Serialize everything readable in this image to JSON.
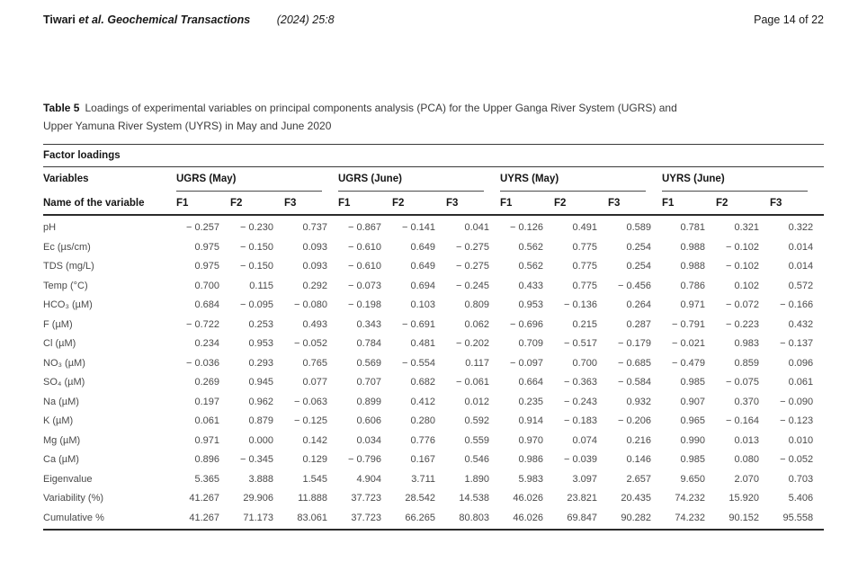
{
  "page_header": {
    "author": "Tiwari",
    "journal": "et al. Geochemical Transactions",
    "citation": "(2024) 25:8",
    "page_info": "Page 14 of 22"
  },
  "table": {
    "caption_label": "Table 5",
    "caption_line1": "Loadings of experimental variables on principal components analysis (PCA) for the Upper Ganga River System (UGRS) and",
    "caption_line2": "Upper Yamuna River System (UYRS) in May and June 2020",
    "section_header": "Factor loadings",
    "variables_header": "Variables",
    "name_header": "Name of the variable",
    "groups": [
      {
        "label": "UGRS (May)"
      },
      {
        "label": "UGRS (June)"
      },
      {
        "label": "UYRS (May)"
      },
      {
        "label": "UYRS (June)"
      }
    ],
    "factor_headers": [
      "F1",
      "F2",
      "F3"
    ],
    "rows": [
      {
        "name": "pH",
        "values": [
          "− 0.257",
          "− 0.230",
          "0.737",
          "− 0.867",
          "− 0.141",
          "0.041",
          "− 0.126",
          "0.491",
          "0.589",
          "0.781",
          "0.321",
          "0.322"
        ]
      },
      {
        "name": "Ec (µs/cm)",
        "values": [
          "0.975",
          "− 0.150",
          "0.093",
          "− 0.610",
          "0.649",
          "− 0.275",
          "0.562",
          "0.775",
          "0.254",
          "0.988",
          "− 0.102",
          "0.014"
        ]
      },
      {
        "name": "TDS (mg/L)",
        "values": [
          "0.975",
          "− 0.150",
          "0.093",
          "− 0.610",
          "0.649",
          "− 0.275",
          "0.562",
          "0.775",
          "0.254",
          "0.988",
          "− 0.102",
          "0.014"
        ]
      },
      {
        "name": "Temp (°C)",
        "values": [
          "0.700",
          "0.115",
          "0.292",
          "− 0.073",
          "0.694",
          "− 0.245",
          "0.433",
          "0.775",
          "− 0.456",
          "0.786",
          "0.102",
          "0.572"
        ]
      },
      {
        "name": "HCO₃ (µM)",
        "values": [
          "0.684",
          "− 0.095",
          "− 0.080",
          "− 0.198",
          "0.103",
          "0.809",
          "0.953",
          "− 0.136",
          "0.264",
          "0.971",
          "− 0.072",
          "− 0.166"
        ]
      },
      {
        "name": "F (µM)",
        "values": [
          "− 0.722",
          "0.253",
          "0.493",
          "0.343",
          "− 0.691",
          "0.062",
          "− 0.696",
          "0.215",
          "0.287",
          "− 0.791",
          "− 0.223",
          "0.432"
        ]
      },
      {
        "name": "Cl (µM)",
        "values": [
          "0.234",
          "0.953",
          "− 0.052",
          "0.784",
          "0.481",
          "− 0.202",
          "0.709",
          "− 0.517",
          "− 0.179",
          "− 0.021",
          "0.983",
          "− 0.137"
        ]
      },
      {
        "name": "NO₃ (µM)",
        "values": [
          "− 0.036",
          "0.293",
          "0.765",
          "0.569",
          "− 0.554",
          "0.117",
          "− 0.097",
          "0.700",
          "− 0.685",
          "− 0.479",
          "0.859",
          "0.096"
        ]
      },
      {
        "name": "SO₄ (µM)",
        "values": [
          "0.269",
          "0.945",
          "0.077",
          "0.707",
          "0.682",
          "− 0.061",
          "0.664",
          "− 0.363",
          "− 0.584",
          "0.985",
          "− 0.075",
          "0.061"
        ]
      },
      {
        "name": "Na (µM)",
        "values": [
          "0.197",
          "0.962",
          "− 0.063",
          "0.899",
          "0.412",
          "0.012",
          "0.235",
          "− 0.243",
          "0.932",
          "0.907",
          "0.370",
          "− 0.090"
        ]
      },
      {
        "name": "K (µM)",
        "values": [
          "0.061",
          "0.879",
          "− 0.125",
          "0.606",
          "0.280",
          "0.592",
          "0.914",
          "− 0.183",
          "− 0.206",
          "0.965",
          "− 0.164",
          "− 0.123"
        ]
      },
      {
        "name": "Mg (µM)",
        "values": [
          "0.971",
          "0.000",
          "0.142",
          "0.034",
          "0.776",
          "0.559",
          "0.970",
          "0.074",
          "0.216",
          "0.990",
          "0.013",
          "0.010"
        ]
      },
      {
        "name": "Ca (µM)",
        "values": [
          "0.896",
          "− 0.345",
          "0.129",
          "− 0.796",
          "0.167",
          "0.546",
          "0.986",
          "− 0.039",
          "0.146",
          "0.985",
          "0.080",
          "− 0.052"
        ]
      },
      {
        "name": "Eigenvalue",
        "values": [
          "5.365",
          "3.888",
          "1.545",
          "4.904",
          "3.711",
          "1.890",
          "5.983",
          "3.097",
          "2.657",
          "9.650",
          "2.070",
          "0.703"
        ]
      },
      {
        "name": "Variability (%)",
        "values": [
          "41.267",
          "29.906",
          "11.888",
          "37.723",
          "28.542",
          "14.538",
          "46.026",
          "23.821",
          "20.435",
          "74.232",
          "15.920",
          "5.406"
        ]
      },
      {
        "name": "Cumulative %",
        "values": [
          "41.267",
          "71.173",
          "83.061",
          "37.723",
          "66.265",
          "80.803",
          "46.026",
          "69.847",
          "90.282",
          "74.232",
          "90.152",
          "95.558"
        ]
      }
    ]
  }
}
